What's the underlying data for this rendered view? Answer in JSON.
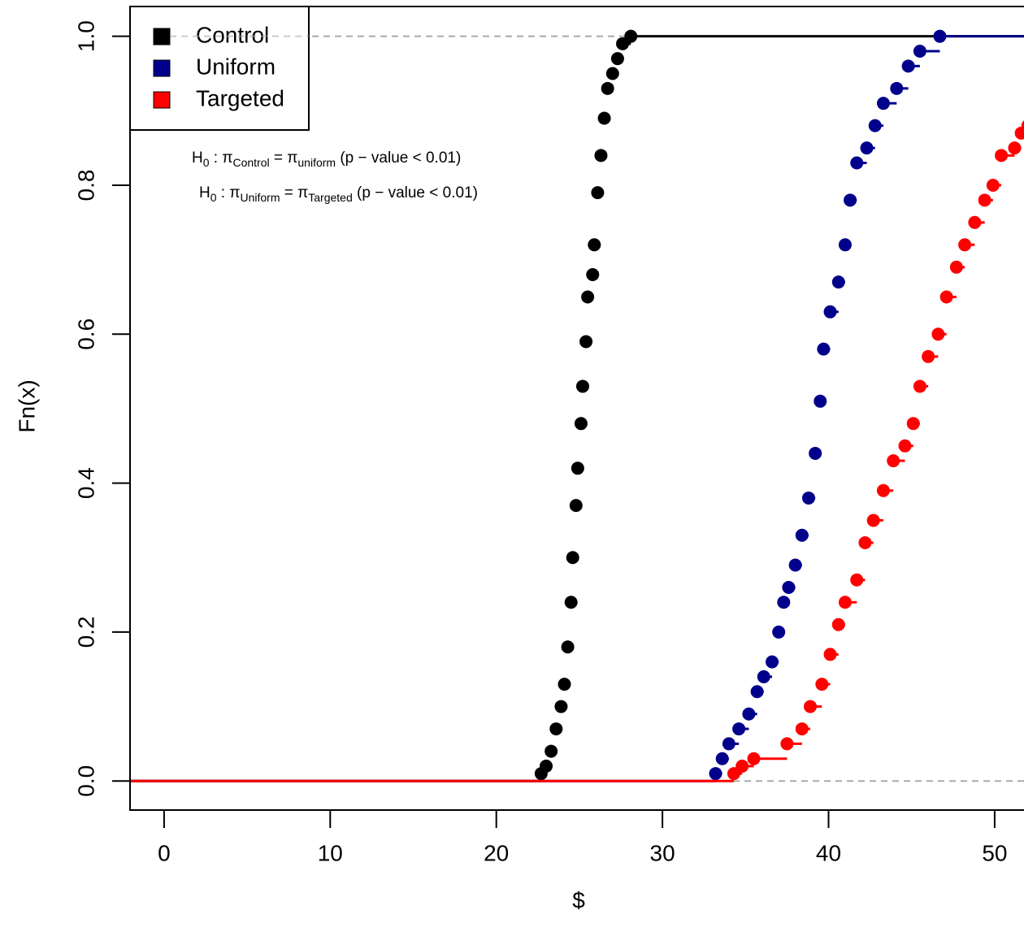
{
  "chart_data": {
    "type": "ecdf",
    "x_label": "$",
    "y_label": "Fn(x)",
    "xlim": [
      -2.05,
      53.5
    ],
    "ylim": [
      -0.039,
      1.04
    ],
    "xticks": [
      0,
      10,
      20,
      30,
      40,
      50
    ],
    "yticks": [
      {
        "value": 0,
        "label": "0.0"
      },
      {
        "value": 0.2,
        "label": "0.2"
      },
      {
        "value": 0.4,
        "label": "0.4"
      },
      {
        "value": 0.6,
        "label": "0.6"
      },
      {
        "value": 0.8,
        "label": "0.8"
      },
      {
        "value": 1,
        "label": "1.0"
      }
    ],
    "hlines": [
      0,
      1
    ],
    "legend": "top-left",
    "series": [
      {
        "name": "Control",
        "color": "#000000",
        "x": [
          22.7,
          23.0,
          23.3,
          23.6,
          23.9,
          24.1,
          24.3,
          24.5,
          24.6,
          24.8,
          24.9,
          25.1,
          25.2,
          25.4,
          25.5,
          25.8,
          25.9,
          26.1,
          26.3,
          26.5,
          26.7,
          27.0,
          27.3,
          27.6,
          28.1
        ],
        "values": [
          0.01,
          0.02,
          0.04,
          0.07,
          0.1,
          0.13,
          0.18,
          0.24,
          0.3,
          0.37,
          0.42,
          0.48,
          0.53,
          0.59,
          0.65,
          0.68,
          0.72,
          0.79,
          0.84,
          0.89,
          0.93,
          0.95,
          0.97,
          0.99,
          1.0
        ]
      },
      {
        "name": "Uniform",
        "color": "#00008b",
        "x": [
          33.2,
          33.6,
          34.0,
          34.6,
          35.2,
          35.7,
          36.1,
          36.6,
          37.0,
          37.3,
          37.6,
          38.0,
          38.4,
          38.8,
          39.2,
          39.5,
          39.7,
          40.1,
          40.6,
          41.0,
          41.3,
          41.7,
          42.3,
          42.8,
          43.3,
          44.1,
          44.8,
          45.5,
          46.7
        ],
        "values": [
          0.01,
          0.03,
          0.05,
          0.07,
          0.09,
          0.12,
          0.14,
          0.16,
          0.2,
          0.24,
          0.26,
          0.29,
          0.33,
          0.38,
          0.44,
          0.51,
          0.58,
          0.63,
          0.67,
          0.72,
          0.78,
          0.83,
          0.85,
          0.88,
          0.91,
          0.93,
          0.96,
          0.98,
          1.0
        ]
      },
      {
        "name": "Targeted",
        "color": "#ff0000",
        "x": [
          34.3,
          34.8,
          35.5,
          37.5,
          38.4,
          38.9,
          39.6,
          40.1,
          40.6,
          41.0,
          41.7,
          42.2,
          42.7,
          43.3,
          43.9,
          44.6,
          45.1,
          45.5,
          46.0,
          46.6,
          47.1,
          47.7,
          48.2,
          48.8,
          49.4,
          49.9,
          50.4,
          51.2,
          51.6,
          52.0
        ],
        "values": [
          0.01,
          0.02,
          0.03,
          0.05,
          0.07,
          0.1,
          0.13,
          0.17,
          0.21,
          0.24,
          0.27,
          0.32,
          0.35,
          0.39,
          0.43,
          0.45,
          0.48,
          0.53,
          0.57,
          0.6,
          0.65,
          0.69,
          0.72,
          0.75,
          0.78,
          0.8,
          0.84,
          0.85,
          0.87,
          0.88
        ]
      }
    ],
    "annotations": [
      [
        {
          "t": "H"
        },
        {
          "t": "0",
          "sub": true
        },
        {
          "t": " :  π"
        },
        {
          "t": "Control",
          "sub": true
        },
        {
          "t": " = π"
        },
        {
          "t": "uniform",
          "sub": true
        },
        {
          "t": "  (p − value < 0.01)"
        }
      ],
      [
        {
          "t": "H"
        },
        {
          "t": "0",
          "sub": true
        },
        {
          "t": " :  π"
        },
        {
          "t": "Uniform",
          "sub": true
        },
        {
          "t": " = π"
        },
        {
          "t": "Targeted",
          "sub": true
        },
        {
          "t": "  (p − value < 0.01)"
        }
      ]
    ]
  }
}
